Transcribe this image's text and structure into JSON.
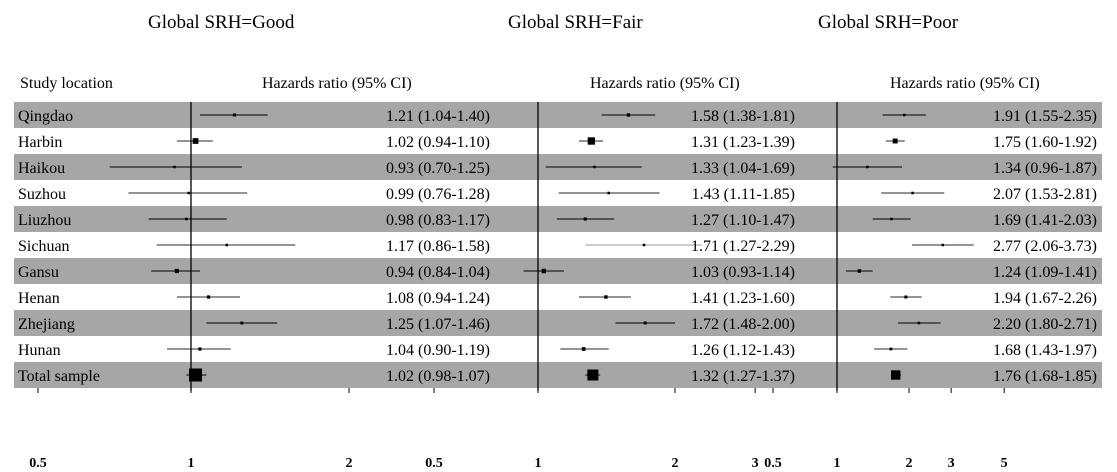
{
  "chart_data": {
    "type": "forest",
    "row_header": "Study location",
    "locations": [
      "Qingdao",
      "Harbin",
      "Haikou",
      "Suzhou",
      "Liuzhou",
      "Sichuan",
      "Gansu",
      "Henan",
      "Zhejiang",
      "Hunan",
      "Total sample"
    ],
    "band_color": "#a6a6a6",
    "x_scale": "log",
    "panels": [
      {
        "title": "Global SRH=Good",
        "ci_header": "Hazards ratio (95% CI)",
        "ticks": [
          0.5,
          1,
          2
        ],
        "tick_labels": [
          "0.5",
          "1",
          "2"
        ],
        "xlim": [
          0.5,
          2
        ],
        "estimates": [
          {
            "hr": 1.21,
            "lo": 1.04,
            "hi": 1.4,
            "label": "1.21 (1.04-1.40)"
          },
          {
            "hr": 1.02,
            "lo": 0.94,
            "hi": 1.1,
            "label": "1.02 (0.94-1.10)"
          },
          {
            "hr": 0.93,
            "lo": 0.7,
            "hi": 1.25,
            "label": "0.93 (0.70-1.25)"
          },
          {
            "hr": 0.99,
            "lo": 0.76,
            "hi": 1.28,
            "label": "0.99 (0.76-1.28)"
          },
          {
            "hr": 0.98,
            "lo": 0.83,
            "hi": 1.17,
            "label": "0.98 (0.83-1.17)"
          },
          {
            "hr": 1.17,
            "lo": 0.86,
            "hi": 1.58,
            "label": "1.17 (0.86-1.58)"
          },
          {
            "hr": 0.94,
            "lo": 0.84,
            "hi": 1.04,
            "label": "0.94 (0.84-1.04)"
          },
          {
            "hr": 1.08,
            "lo": 0.94,
            "hi": 1.24,
            "label": "1.08 (0.94-1.24)"
          },
          {
            "hr": 1.25,
            "lo": 1.07,
            "hi": 1.46,
            "label": "1.25 (1.07-1.46)"
          },
          {
            "hr": 1.04,
            "lo": 0.9,
            "hi": 1.19,
            "label": "1.04 (0.90-1.19)"
          },
          {
            "hr": 1.02,
            "lo": 0.98,
            "hi": 1.07,
            "label": "1.02 (0.98-1.07)"
          }
        ]
      },
      {
        "title": "Global SRH=Fair",
        "ci_header": "Hazards ratio (95% CI)",
        "ticks": [
          0.5,
          1,
          2,
          3
        ],
        "tick_labels": [
          "0.5",
          "1",
          "2",
          "3"
        ],
        "xlim": [
          1,
          3.3
        ],
        "estimates": [
          {
            "hr": 1.58,
            "lo": 1.38,
            "hi": 1.81,
            "label": "1.58 (1.38-1.81)"
          },
          {
            "hr": 1.31,
            "lo": 1.23,
            "hi": 1.39,
            "label": "1.31 (1.23-1.39)"
          },
          {
            "hr": 1.33,
            "lo": 1.04,
            "hi": 1.69,
            "label": "1.33 (1.04-1.69)"
          },
          {
            "hr": 1.43,
            "lo": 1.11,
            "hi": 1.85,
            "label": "1.43 (1.11-1.85)"
          },
          {
            "hr": 1.27,
            "lo": 1.1,
            "hi": 1.47,
            "label": "1.27 (1.10-1.47)"
          },
          {
            "hr": 1.71,
            "lo": 1.27,
            "hi": 2.29,
            "label": "1.71 (1.27-2.29)"
          },
          {
            "hr": 1.03,
            "lo": 0.93,
            "hi": 1.14,
            "label": "1.03 (0.93-1.14)"
          },
          {
            "hr": 1.41,
            "lo": 1.23,
            "hi": 1.6,
            "label": "1.41 (1.23-1.60)"
          },
          {
            "hr": 1.72,
            "lo": 1.48,
            "hi": 2.0,
            "label": "1.72 (1.48-2.00)"
          },
          {
            "hr": 1.26,
            "lo": 1.12,
            "hi": 1.43,
            "label": "1.26 (1.12-1.43)"
          },
          {
            "hr": 1.32,
            "lo": 1.27,
            "hi": 1.37,
            "label": "1.32 (1.27-1.37)"
          }
        ]
      },
      {
        "title": "Global SRH=Poor",
        "ci_header": "Hazards ratio (95% CI)",
        "ticks": [
          0.5,
          1,
          2,
          3,
          5
        ],
        "tick_labels": [
          "0.5",
          "1",
          "2",
          "3",
          "5"
        ],
        "xlim": [
          1,
          5
        ],
        "estimates": [
          {
            "hr": 1.91,
            "lo": 1.55,
            "hi": 2.35,
            "label": "1.91 (1.55-2.35)"
          },
          {
            "hr": 1.75,
            "lo": 1.6,
            "hi": 1.92,
            "label": "1.75 (1.60-1.92)"
          },
          {
            "hr": 1.34,
            "lo": 0.96,
            "hi": 1.87,
            "label": "1.34 (0.96-1.87)"
          },
          {
            "hr": 2.07,
            "lo": 1.53,
            "hi": 2.81,
            "label": "2.07 (1.53-2.81)"
          },
          {
            "hr": 1.69,
            "lo": 1.41,
            "hi": 2.03,
            "label": "1.69 (1.41-2.03)"
          },
          {
            "hr": 2.77,
            "lo": 2.06,
            "hi": 3.73,
            "label": "2.77 (2.06-3.73)"
          },
          {
            "hr": 1.24,
            "lo": 1.09,
            "hi": 1.41,
            "label": "1.24 (1.09-1.41)"
          },
          {
            "hr": 1.94,
            "lo": 1.67,
            "hi": 2.26,
            "label": "1.94 (1.67-2.26)"
          },
          {
            "hr": 2.2,
            "lo": 1.8,
            "hi": 2.71,
            "label": "2.20 (1.80-2.71)"
          },
          {
            "hr": 1.68,
            "lo": 1.43,
            "hi": 1.97,
            "label": "1.68 (1.43-1.97)"
          },
          {
            "hr": 1.76,
            "lo": 1.68,
            "hi": 1.85,
            "label": "1.76 (1.68-1.85)"
          }
        ]
      }
    ]
  }
}
